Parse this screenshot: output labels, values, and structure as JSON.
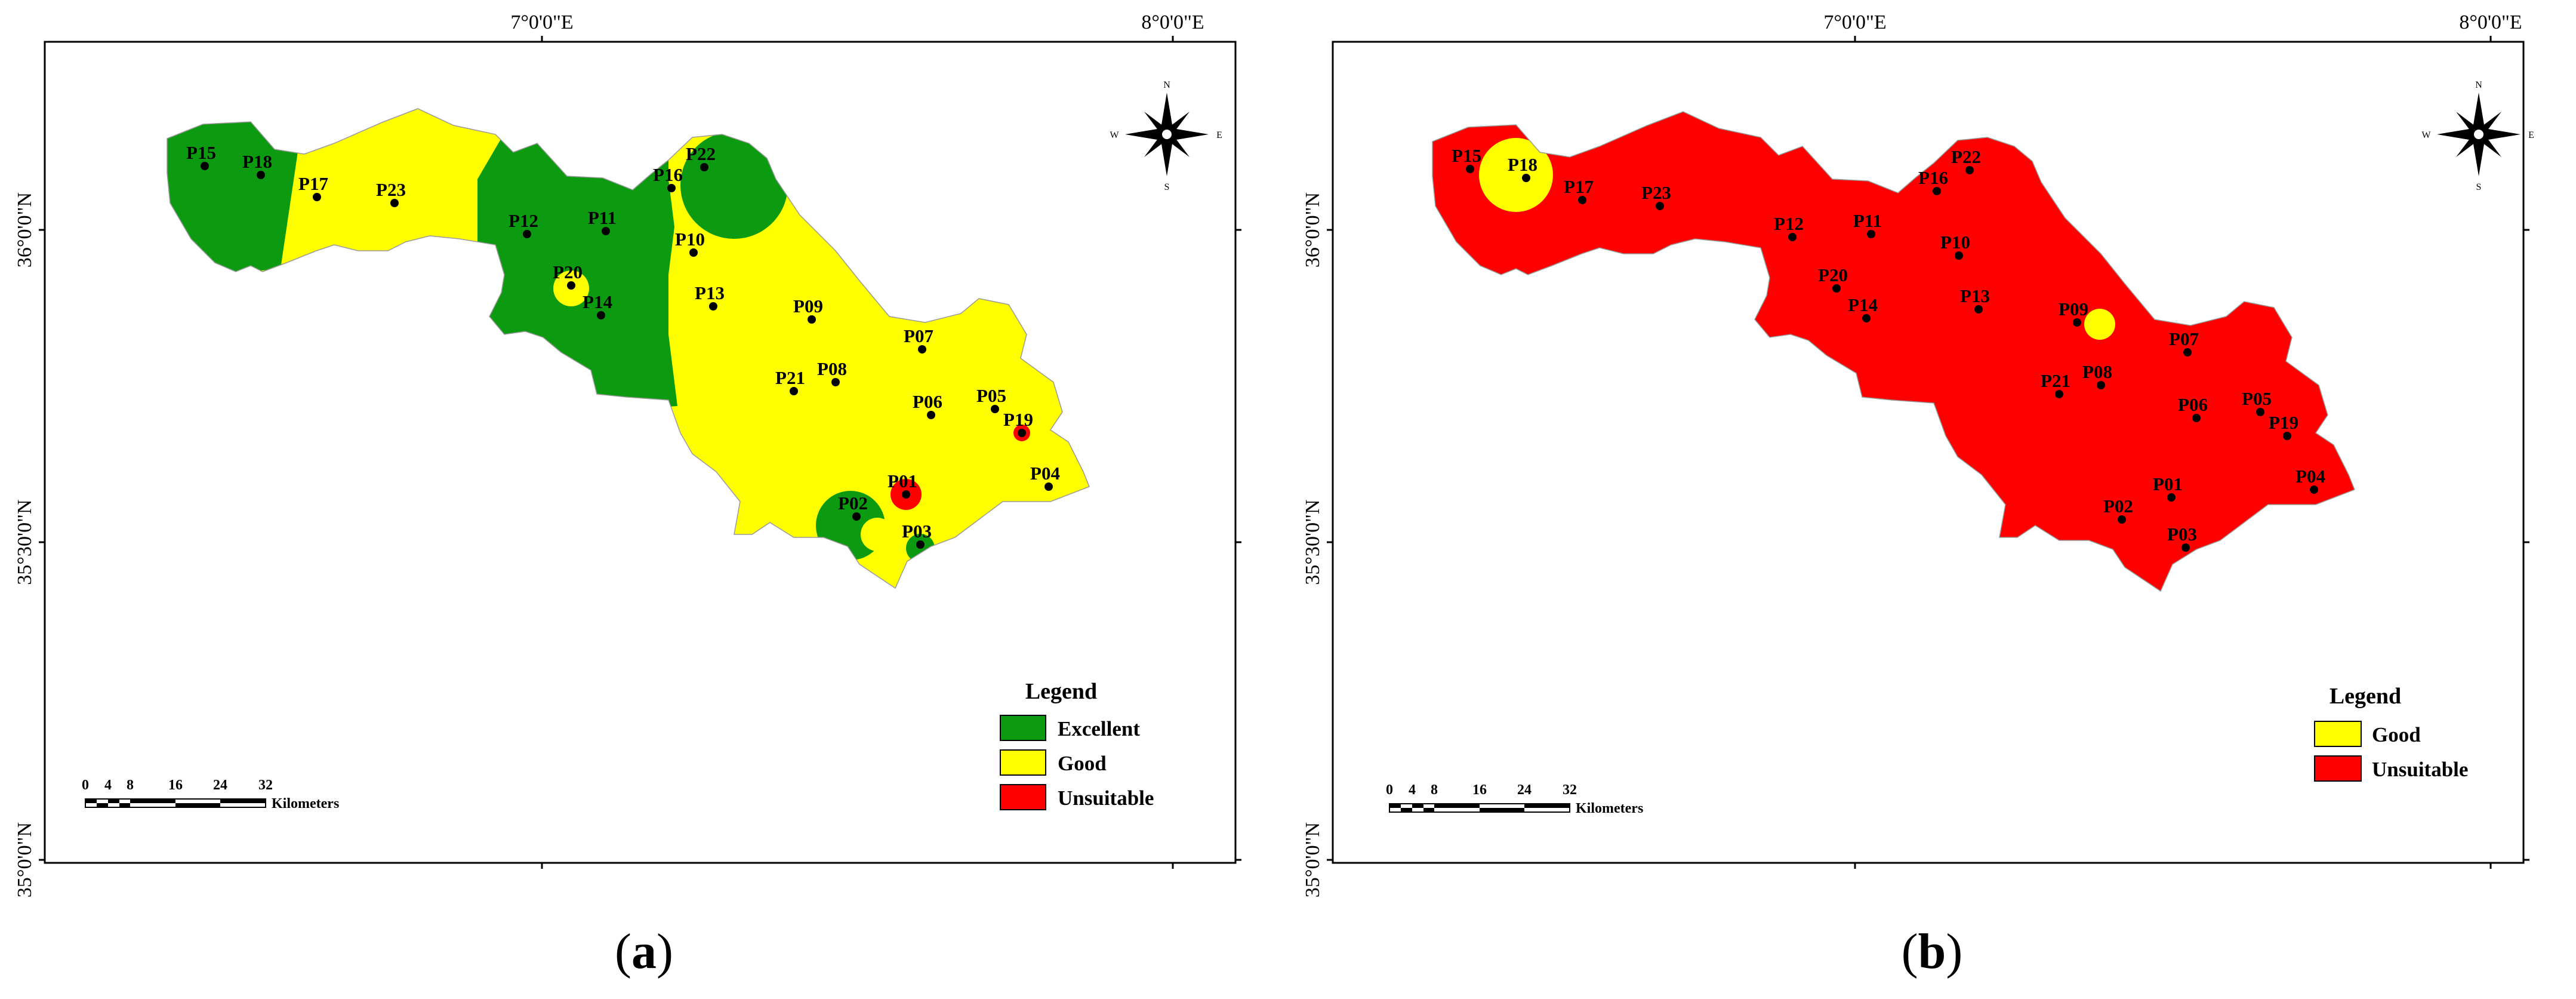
{
  "panels": [
    {
      "caption_letter": "a",
      "coords": {
        "lon1": "7°0'0\"E",
        "lon2": "8°0'0\"E",
        "lat1": "36°0'0\"N",
        "lat2": "35°30'0\"N",
        "lat3": "35°0'0\"N"
      },
      "compass": {
        "n": "N",
        "s": "S",
        "e": "E",
        "w": "W"
      },
      "legend": {
        "title": "Legend",
        "items": [
          {
            "label": "Excellent",
            "color": "#0c9b10"
          },
          {
            "label": "Good",
            "color": "#ffff00"
          },
          {
            "label": "Unsuitable",
            "color": "#ff0000"
          }
        ]
      },
      "scale": {
        "ticks": [
          "0",
          "4",
          "8",
          "16",
          "24",
          "32"
        ],
        "unit": "Kilometers"
      },
      "points": [
        "P15",
        "P18",
        "P17",
        "P23",
        "P16",
        "P22",
        "P12",
        "P11",
        "P10",
        "P20",
        "P14",
        "P13",
        "P09",
        "P07",
        "P21",
        "P08",
        "P06",
        "P05",
        "P19",
        "P01",
        "P02",
        "P03",
        "P04"
      ]
    },
    {
      "caption_letter": "b",
      "coords": {
        "lon1": "7°0'0\"E",
        "lon2": "8°0'0\"E",
        "lat1": "36°0'0\"N",
        "lat2": "35°30'0\"N",
        "lat3": "35°0'0\"N"
      },
      "compass": {
        "n": "N",
        "s": "S",
        "e": "E",
        "w": "W"
      },
      "legend": {
        "title": "Legend",
        "items": [
          {
            "label": "Good",
            "color": "#ffff00"
          },
          {
            "label": "Unsuitable",
            "color": "#ff0000"
          }
        ]
      },
      "scale": {
        "ticks": [
          "0",
          "4",
          "8",
          "16",
          "24",
          "32"
        ],
        "unit": "Kilometers"
      },
      "points": [
        "P15",
        "P18",
        "P17",
        "P23",
        "P16",
        "P22",
        "P12",
        "P11",
        "P10",
        "P20",
        "P14",
        "P13",
        "P09",
        "P07",
        "P21",
        "P08",
        "P06",
        "P05",
        "P19",
        "P01",
        "P02",
        "P03",
        "P04"
      ]
    }
  ]
}
